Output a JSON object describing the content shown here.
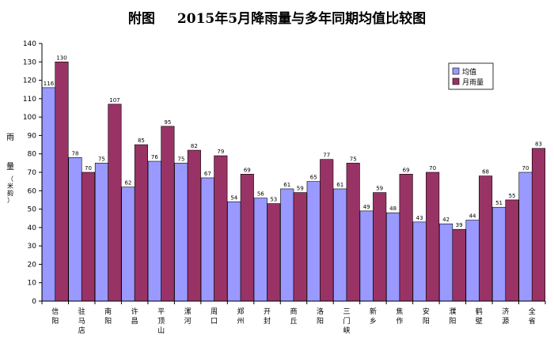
{
  "title_prefix": "附图",
  "title": "2015年5月降雨量与多年同期均值比较图",
  "chart_data": {
    "type": "bar",
    "ylabel": "雨量",
    "ylabel_unit": "（米韵）",
    "ylim": [
      0,
      140
    ],
    "ytick_step": 10,
    "grid": false,
    "legend_position": "top-right",
    "categories": [
      "信阳",
      "驻马店",
      "南阳",
      "许昌",
      "平顶山",
      "漯河",
      "周口",
      "郑州",
      "开封",
      "商丘",
      "洛阳",
      "三门峡",
      "新乡",
      "焦作",
      "安阳",
      "濮阳",
      "鹤壁",
      "济源",
      "全省"
    ],
    "series": [
      {
        "name": "均值",
        "color": "#9999ff",
        "values": [
          116,
          78,
          75,
          62,
          76,
          75,
          67,
          54,
          56,
          61,
          65,
          61,
          49,
          48,
          43,
          42,
          44,
          51,
          70
        ]
      },
      {
        "name": "月雨量",
        "color": "#993366",
        "values": [
          130,
          70,
          107,
          85,
          95,
          82,
          79,
          69,
          53,
          59,
          77,
          75,
          59,
          69,
          70,
          39,
          68,
          55,
          83
        ]
      }
    ]
  }
}
